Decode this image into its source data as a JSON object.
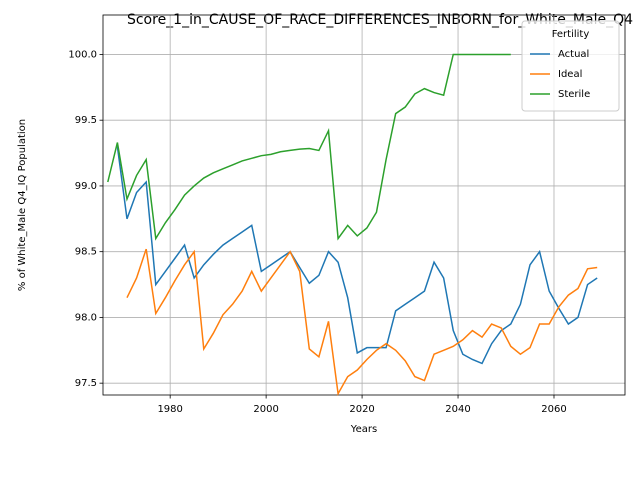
{
  "chart_data": {
    "type": "line",
    "title": "Score_1_in_CAUSE_OF_RACE_DIFFERENCES_INBORN_for_White_Male_Q4",
    "x_label": "Years",
    "y_label": "% of White_Male Q4_IQ Population",
    "legend_title": "Fertility",
    "legend": "upper right",
    "grid": true,
    "x": [
      1967,
      1969,
      1971,
      1973,
      1975,
      1977,
      1979,
      1981,
      1983,
      1985,
      1987,
      1989,
      1991,
      1993,
      1995,
      1997,
      1999,
      2001,
      2003,
      2005,
      2007,
      2009,
      2011,
      2013,
      2015,
      2017,
      2019,
      2021,
      2023,
      2025,
      2027,
      2029,
      2031,
      2033,
      2035,
      2037,
      2039,
      2041,
      2043,
      2045,
      2047,
      2049,
      2051,
      2053,
      2055,
      2057,
      2059,
      2061,
      2063,
      2065,
      2067,
      2069
    ],
    "series": [
      {
        "name": "Actual",
        "color": "#1f77b4",
        "values": [
          null,
          99.3,
          98.75,
          98.95,
          99.03,
          98.25,
          98.35,
          98.45,
          98.55,
          98.3,
          98.4,
          98.48,
          98.55,
          98.6,
          98.65,
          98.7,
          98.35,
          98.4,
          98.45,
          98.5,
          98.38,
          98.26,
          98.32,
          98.5,
          98.42,
          98.15,
          97.73,
          97.77,
          97.77,
          97.77,
          98.05,
          98.1,
          98.15,
          98.2,
          98.42,
          98.3,
          97.9,
          97.72,
          97.68,
          97.65,
          97.8,
          97.9,
          97.95,
          98.1,
          98.4,
          98.5,
          98.2,
          98.07,
          97.95,
          98.0,
          98.25,
          98.3
        ]
      },
      {
        "name": "Ideal",
        "color": "#ff7f0e",
        "values": [
          null,
          null,
          98.15,
          98.3,
          98.52,
          98.03,
          98.15,
          98.28,
          98.4,
          98.5,
          97.76,
          97.88,
          98.02,
          98.1,
          98.2,
          98.35,
          98.2,
          98.3,
          98.4,
          98.5,
          98.35,
          97.76,
          97.7,
          97.97,
          97.42,
          97.55,
          97.6,
          97.68,
          97.75,
          97.8,
          97.75,
          97.67,
          97.55,
          97.52,
          97.72,
          97.75,
          97.78,
          97.83,
          97.9,
          97.85,
          97.95,
          97.92,
          97.78,
          97.72,
          97.77,
          97.95,
          97.95,
          98.08,
          98.17,
          98.22,
          98.37,
          98.38
        ]
      },
      {
        "name": "Sterile",
        "color": "#2ca02c",
        "values": [
          99.03,
          99.33,
          98.9,
          99.08,
          99.2,
          98.6,
          98.72,
          98.82,
          98.93,
          99.0,
          99.06,
          99.1,
          99.13,
          99.16,
          99.19,
          99.21,
          99.23,
          99.24,
          99.26,
          99.27,
          99.28,
          99.285,
          99.27,
          99.42,
          98.6,
          98.7,
          98.62,
          98.68,
          98.8,
          99.2,
          99.55,
          99.6,
          99.7,
          99.74,
          99.71,
          99.69,
          100.0,
          100.0,
          100.0,
          100.0,
          100.0,
          100.0,
          100.0,
          null,
          null,
          null,
          null,
          null,
          null,
          null,
          null,
          null
        ]
      }
    ],
    "xlim": [
      1966,
      2074.8
    ],
    "xticks": [
      1980,
      2000,
      2020,
      2040,
      2060
    ],
    "ylim": [
      97.41,
      100.3
    ],
    "yticks": [
      97.5,
      {
        "value": 98,
        "label": "98.0"
      },
      98.5,
      {
        "value": 99,
        "label": "99.0"
      },
      99.5,
      {
        "value": 100,
        "label": "100.0"
      }
    ]
  }
}
